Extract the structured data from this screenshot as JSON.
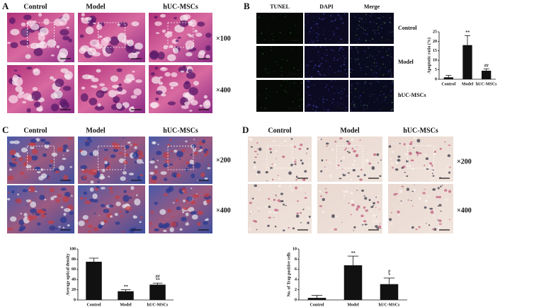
{
  "panels": [
    {
      "label": "A",
      "columns": [
        "Control",
        "Model",
        "hUC-MSCs"
      ],
      "magnifications": [
        "×100",
        "×400"
      ]
    },
    {
      "label": "B",
      "columns": [
        "TUNEL",
        "DAPI",
        "Merge"
      ],
      "rows": [
        "Control",
        "Model",
        "hUC-MSCs"
      ]
    },
    {
      "label": "C",
      "columns": [
        "Control",
        "Model",
        "hUC-MSCs"
      ],
      "magnifications": [
        "×200",
        "×400"
      ]
    },
    {
      "label": "D",
      "columns": [
        "Control",
        "Model",
        "hUC-MSCs"
      ],
      "magnifications": [
        "×200",
        "×400"
      ]
    }
  ],
  "chart_data": [
    {
      "type": "bar",
      "ylabel": "Apoptotic ratio (%)",
      "categories": [
        "Control",
        "Model",
        "hUC-MSCs"
      ],
      "values": [
        1,
        18,
        4.5
      ],
      "errors": [
        1,
        5,
        1
      ],
      "significance": [
        null,
        [
          "**"
        ],
        [
          "##"
        ]
      ],
      "ylim": [
        0,
        25
      ],
      "yticks": [
        0,
        5,
        10,
        15,
        20,
        25
      ],
      "color": "#111111"
    },
    {
      "type": "bar",
      "ylabel": "Average optical density",
      "categories": [
        "Control",
        "Model",
        "hUC-MSCs"
      ],
      "values": [
        75,
        17,
        30
      ],
      "errors": [
        7,
        3,
        3
      ],
      "significance": [
        null,
        [
          "**"
        ],
        [
          "##",
          "**"
        ]
      ],
      "ylim": [
        0,
        100
      ],
      "yticks": [
        0,
        20,
        40,
        60,
        80,
        100
      ],
      "color": "#111111"
    },
    {
      "type": "bar",
      "ylabel": "No. of Trap positive cells",
      "categories": [
        "Control",
        "Model",
        "hUC-MSCs"
      ],
      "values": [
        0.4,
        6.8,
        3.1
      ],
      "errors": [
        0.5,
        1.8,
        1.2
      ],
      "significance": [
        null,
        [
          "**"
        ],
        [
          "#",
          "*"
        ]
      ],
      "ylim": [
        0,
        10
      ],
      "yticks": [
        0,
        2,
        4,
        6,
        8,
        10
      ],
      "color": "#111111"
    }
  ]
}
